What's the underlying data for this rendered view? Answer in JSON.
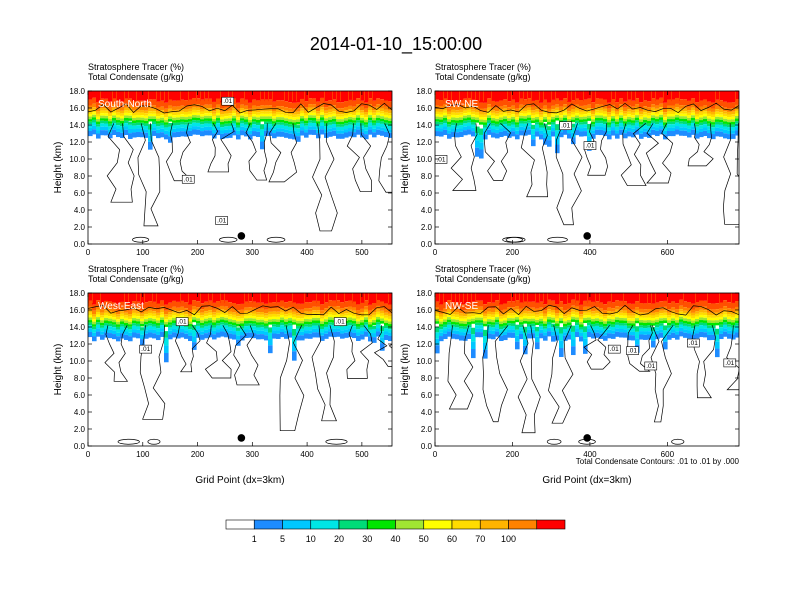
{
  "title": "2014-01-10_15:00:00",
  "footnote": "Total Condensate Contours: .01 to .01 by .000",
  "colors": {
    "levels": [
      "#ffffff",
      "#1e8cff",
      "#00c8ff",
      "#00e6e6",
      "#00dc78",
      "#00e600",
      "#a0e632",
      "#ffff00",
      "#ffdc00",
      "#ffb400",
      "#ff8200",
      "#ff5000",
      "#ff0000"
    ]
  },
  "colorbar": {
    "labels": [
      "1",
      "5",
      "10",
      "20",
      "30",
      "40",
      "50",
      "60",
      "70",
      "100"
    ]
  },
  "chart_data": [
    {
      "type": "heatmap",
      "name": "South-North",
      "header1": "Stratosphere Tracer   (%)",
      "header2": "Total Condensate   (g/kg)",
      "ylabel": "Height (km)",
      "xlabel": "",
      "xlim": [
        0,
        555
      ],
      "ylim": [
        0,
        18
      ],
      "xticks": [
        "0",
        "100",
        "200",
        "300",
        "400",
        "500"
      ],
      "yticks": [
        "0.0",
        "2.0",
        "4.0",
        "6.0",
        "8.0",
        "10.0",
        "12.0",
        "14.0",
        "16.0",
        "18.0"
      ],
      "contour_labels": [
        ".01",
        ".01",
        ".01"
      ],
      "marker_x": 280
    },
    {
      "type": "heatmap",
      "name": "SW-NE",
      "header1": "Stratosphere Tracer   (%)",
      "header2": "Total Condensate   (g/kg)",
      "ylabel": "Height (km)",
      "xlabel": "",
      "xlim": [
        0,
        785
      ],
      "ylim": [
        0,
        18
      ],
      "xticks": [
        "0",
        "200",
        "400",
        "600"
      ],
      "yticks": [
        "0.0",
        "2.0",
        "4.0",
        "6.0",
        "8.0",
        "10.0",
        "12.0",
        "14.0",
        "16.0",
        "18.0"
      ],
      "contour_labels": [
        ".01",
        ".01",
        ".01"
      ],
      "marker_x": 393
    },
    {
      "type": "heatmap",
      "name": "West-East",
      "header1": "Stratosphere Tracer   (%)",
      "header2": "Total Condensate   (g/kg)",
      "ylabel": "Height (km)",
      "xlabel": "Grid Point (dx=3km)",
      "xlim": [
        0,
        555
      ],
      "ylim": [
        0,
        18
      ],
      "xticks": [
        "0",
        "100",
        "200",
        "300",
        "400",
        "500"
      ],
      "yticks": [
        "0.0",
        "2.0",
        "4.0",
        "6.0",
        "8.0",
        "10.0",
        "12.0",
        "14.0",
        "16.0",
        "18.0"
      ],
      "contour_labels": [
        ".01",
        ".01",
        ".01"
      ],
      "marker_x": 280
    },
    {
      "type": "heatmap",
      "name": "NW-SE",
      "header1": "Stratosphere Tracer   (%)",
      "header2": "Total Condensate   (g/kg)",
      "ylabel": "Height (km)",
      "xlabel": "Grid Point (dx=3km)",
      "xlim": [
        0,
        785
      ],
      "ylim": [
        0,
        18
      ],
      "xticks": [
        "0",
        "200",
        "400",
        "600"
      ],
      "yticks": [
        "0.0",
        "2.0",
        "4.0",
        "6.0",
        "8.0",
        "10.0",
        "12.0",
        "14.0",
        "16.0",
        "18.0"
      ],
      "contour_labels": [
        ".01",
        ".01",
        ".01",
        ".01",
        ".01"
      ],
      "marker_x": 393
    }
  ]
}
